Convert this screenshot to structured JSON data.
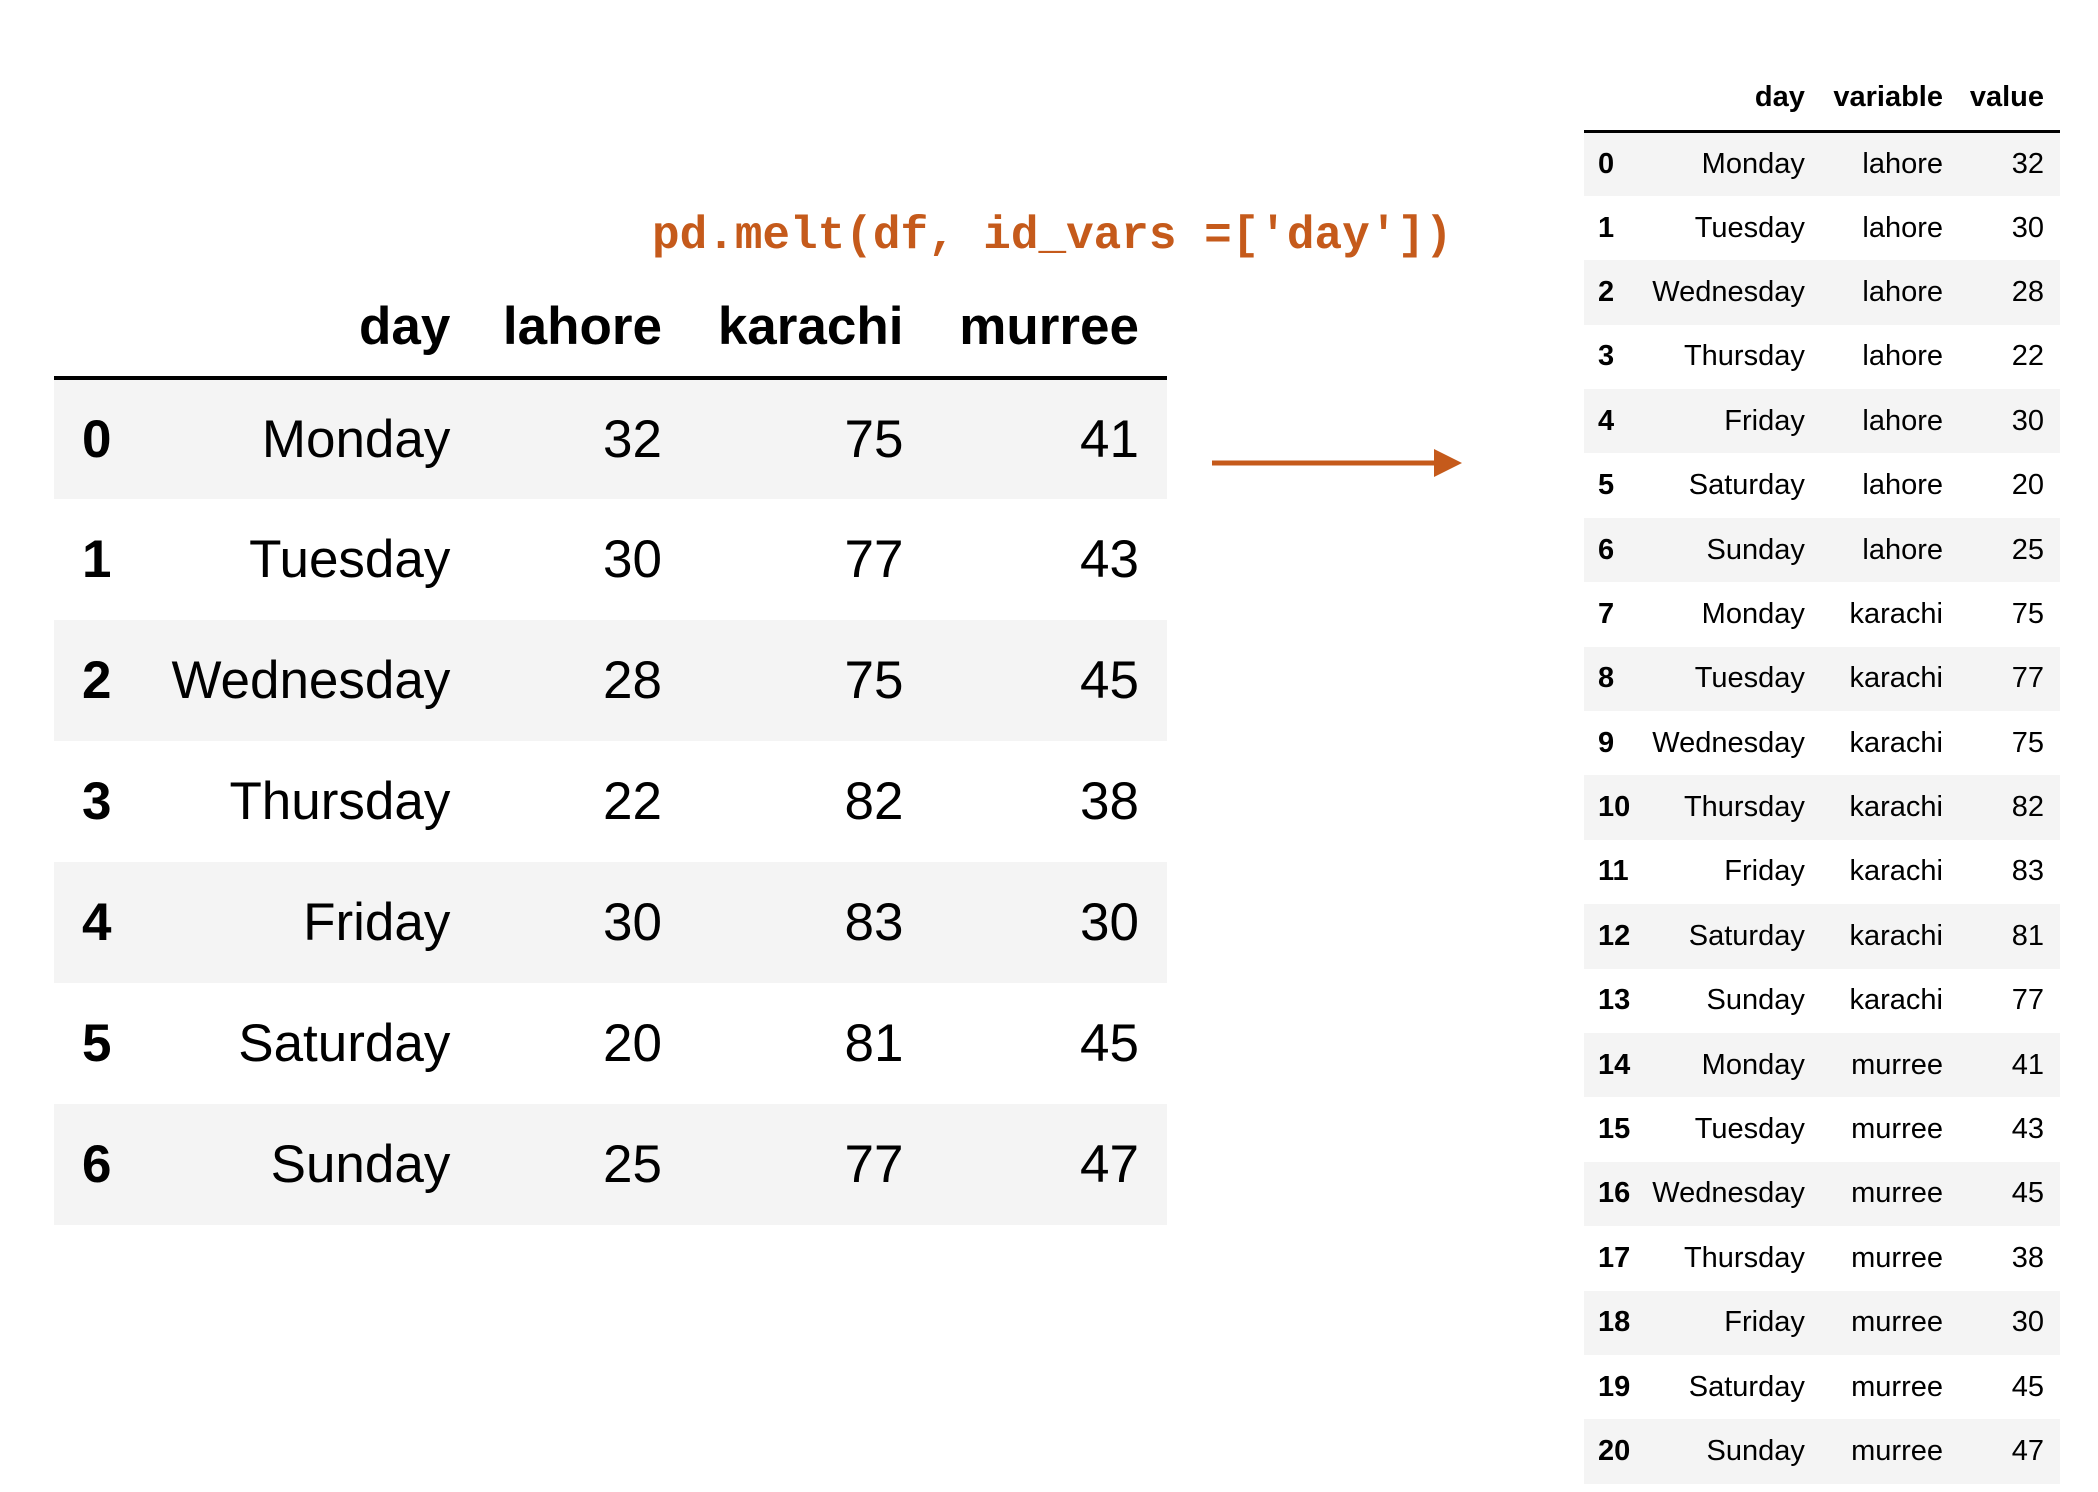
{
  "caption": "pd.melt(df, id_vars =['day'])",
  "accent_color": "#c55a1b",
  "wide": {
    "headers": [
      "day",
      "lahore",
      "karachi",
      "murree"
    ],
    "rows": [
      {
        "idx": "0",
        "day": "Monday",
        "lahore": "32",
        "karachi": "75",
        "murree": "41"
      },
      {
        "idx": "1",
        "day": "Tuesday",
        "lahore": "30",
        "karachi": "77",
        "murree": "43"
      },
      {
        "idx": "2",
        "day": "Wednesday",
        "lahore": "28",
        "karachi": "75",
        "murree": "45"
      },
      {
        "idx": "3",
        "day": "Thursday",
        "lahore": "22",
        "karachi": "82",
        "murree": "38"
      },
      {
        "idx": "4",
        "day": "Friday",
        "lahore": "30",
        "karachi": "83",
        "murree": "30"
      },
      {
        "idx": "5",
        "day": "Saturday",
        "lahore": "20",
        "karachi": "81",
        "murree": "45"
      },
      {
        "idx": "6",
        "day": "Sunday",
        "lahore": "25",
        "karachi": "77",
        "murree": "47"
      }
    ]
  },
  "long": {
    "headers": [
      "day",
      "variable",
      "value"
    ],
    "rows": [
      {
        "idx": "0",
        "day": "Monday",
        "variable": "lahore",
        "value": "32"
      },
      {
        "idx": "1",
        "day": "Tuesday",
        "variable": "lahore",
        "value": "30"
      },
      {
        "idx": "2",
        "day": "Wednesday",
        "variable": "lahore",
        "value": "28"
      },
      {
        "idx": "3",
        "day": "Thursday",
        "variable": "lahore",
        "value": "22"
      },
      {
        "idx": "4",
        "day": "Friday",
        "variable": "lahore",
        "value": "30"
      },
      {
        "idx": "5",
        "day": "Saturday",
        "variable": "lahore",
        "value": "20"
      },
      {
        "idx": "6",
        "day": "Sunday",
        "variable": "lahore",
        "value": "25"
      },
      {
        "idx": "7",
        "day": "Monday",
        "variable": "karachi",
        "value": "75"
      },
      {
        "idx": "8",
        "day": "Tuesday",
        "variable": "karachi",
        "value": "77"
      },
      {
        "idx": "9",
        "day": "Wednesday",
        "variable": "karachi",
        "value": "75"
      },
      {
        "idx": "10",
        "day": "Thursday",
        "variable": "karachi",
        "value": "82"
      },
      {
        "idx": "11",
        "day": "Friday",
        "variable": "karachi",
        "value": "83"
      },
      {
        "idx": "12",
        "day": "Saturday",
        "variable": "karachi",
        "value": "81"
      },
      {
        "idx": "13",
        "day": "Sunday",
        "variable": "karachi",
        "value": "77"
      },
      {
        "idx": "14",
        "day": "Monday",
        "variable": "murree",
        "value": "41"
      },
      {
        "idx": "15",
        "day": "Tuesday",
        "variable": "murree",
        "value": "43"
      },
      {
        "idx": "16",
        "day": "Wednesday",
        "variable": "murree",
        "value": "45"
      },
      {
        "idx": "17",
        "day": "Thursday",
        "variable": "murree",
        "value": "38"
      },
      {
        "idx": "18",
        "day": "Friday",
        "variable": "murree",
        "value": "30"
      },
      {
        "idx": "19",
        "day": "Saturday",
        "variable": "murree",
        "value": "45"
      },
      {
        "idx": "20",
        "day": "Sunday",
        "variable": "murree",
        "value": "47"
      }
    ]
  }
}
